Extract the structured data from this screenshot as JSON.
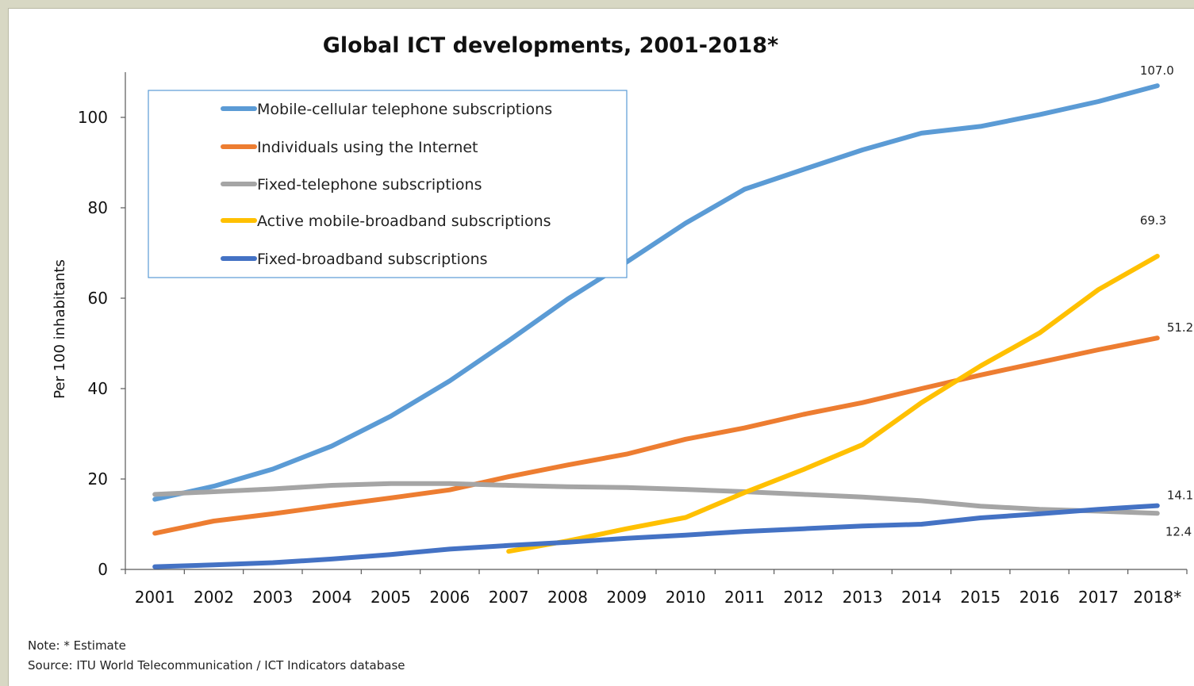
{
  "chart_data": {
    "type": "line",
    "title": "Global ICT developments, 2001-2018*",
    "ylabel": "Per 100 inhabitants",
    "xlabel": "",
    "ylim": [
      0,
      110
    ],
    "yticks": [
      0,
      20,
      40,
      60,
      80,
      100
    ],
    "categories": [
      "2001",
      "2002",
      "2003",
      "2004",
      "2005",
      "2006",
      "2007",
      "2008",
      "2009",
      "2010",
      "2011",
      "2012",
      "2013",
      "2014",
      "2015",
      "2016",
      "2017",
      "2018*"
    ],
    "legend_position": "upper-left, inside plot",
    "series": [
      {
        "name": "Mobile-cellular telephone subscriptions",
        "color": "#5b9bd5",
        "values": [
          15.5,
          18.4,
          22.2,
          27.3,
          33.9,
          41.7,
          50.6,
          59.8,
          68.0,
          76.6,
          84.1,
          88.5,
          92.8,
          96.5,
          98.0,
          100.6,
          103.5,
          107.0
        ],
        "end_label": "107.0"
      },
      {
        "name": "Individuals using the Internet",
        "color": "#ed7d31",
        "values": [
          8.0,
          10.7,
          12.3,
          14.1,
          15.8,
          17.6,
          20.5,
          23.1,
          25.5,
          28.8,
          31.3,
          34.3,
          36.9,
          40.0,
          43.0,
          45.8,
          48.6,
          51.2
        ],
        "end_label": "51.2"
      },
      {
        "name": "Fixed-telephone subscriptions",
        "color": "#a5a5a5",
        "values": [
          16.6,
          17.2,
          17.8,
          18.6,
          19.0,
          19.0,
          18.6,
          18.3,
          18.1,
          17.7,
          17.2,
          16.6,
          16.0,
          15.2,
          14.0,
          13.3,
          12.9,
          12.4
        ],
        "end_label": "12.4"
      },
      {
        "name": "Active mobile-broadband subscriptions",
        "color": "#ffc000",
        "values": [
          null,
          null,
          null,
          null,
          null,
          null,
          4.0,
          6.3,
          9.0,
          11.5,
          17.0,
          22.1,
          27.6,
          36.9,
          45.0,
          52.3,
          61.9,
          69.3
        ],
        "end_label": "69.3"
      },
      {
        "name": "Fixed-broadband subscriptions",
        "color": "#4472c4",
        "values": [
          0.6,
          1.0,
          1.5,
          2.3,
          3.3,
          4.5,
          5.3,
          6.0,
          6.9,
          7.6,
          8.4,
          9.0,
          9.6,
          10.0,
          11.4,
          12.3,
          13.3,
          14.1
        ],
        "end_label": "14.1"
      }
    ]
  },
  "notes": {
    "note": "Note: * Estimate",
    "source": "Source:  ITU World Telecommunication / ICT Indicators database"
  }
}
